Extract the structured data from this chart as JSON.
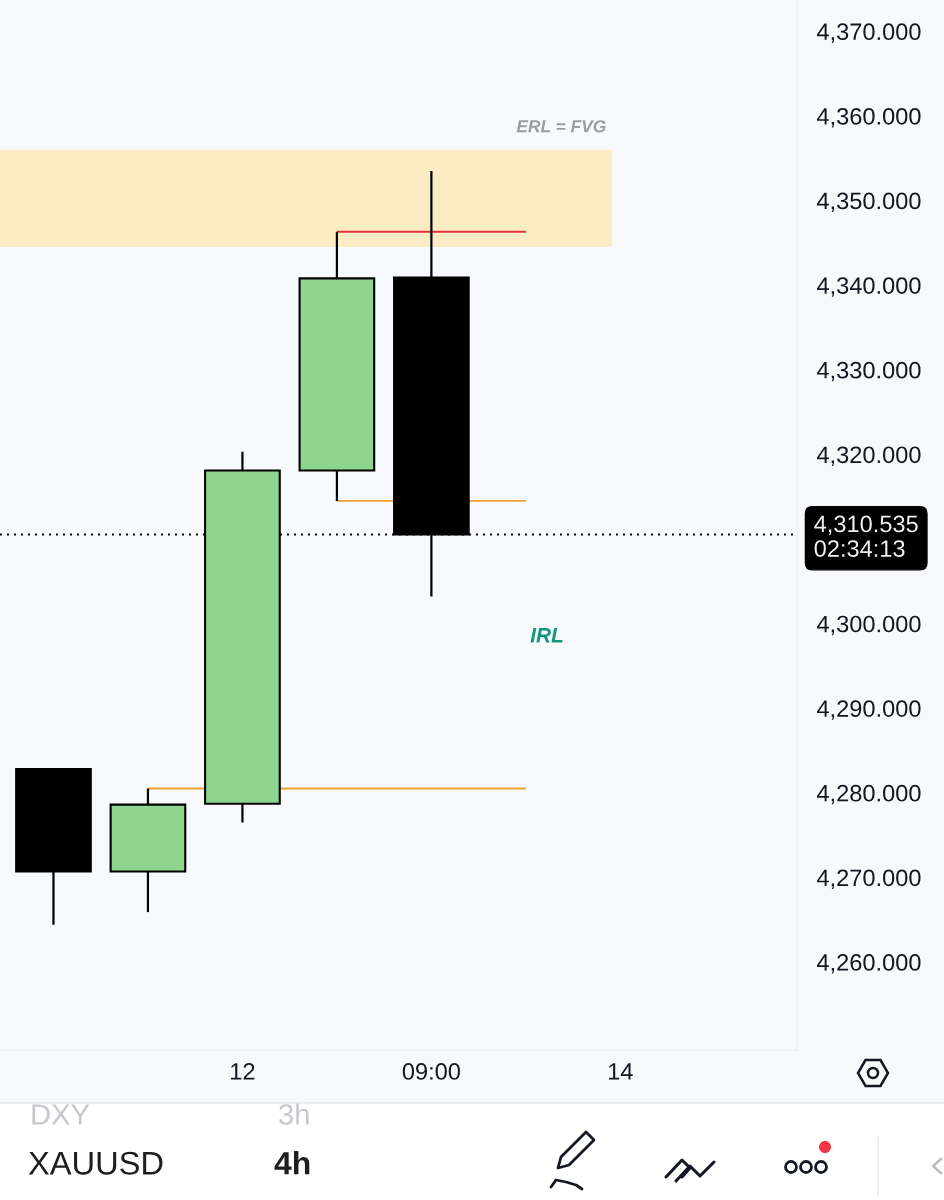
{
  "chart_data": {
    "type": "candlestick",
    "categories": [
      null,
      null,
      "12",
      null,
      "09:00",
      null,
      "14",
      null
    ],
    "ohlc": [
      [
        4282.8,
        4282.9,
        4264.4,
        4270.7
      ],
      [
        4270.7,
        4280.5,
        4265.9,
        4278.6
      ],
      [
        4278.7,
        4320.3,
        4276.5,
        4318.1
      ],
      [
        4318.1,
        4346.3,
        4314.5,
        4340.8
      ],
      [
        4340.9,
        4353.5,
        4303.2,
        4310.535
      ],
      null,
      null,
      null
    ],
    "colors": [
      "#000000",
      "#8ed68f",
      "#8ed68f",
      "#8ed68f",
      "#000000",
      null,
      null,
      null
    ],
    "ylim": [
      4249.6,
      4373.7
    ],
    "yticks": [
      {
        "value": 4260,
        "label": "4,260.000"
      },
      {
        "value": 4270,
        "label": "4,270.000"
      },
      {
        "value": 4280,
        "label": "4,280.000"
      },
      {
        "value": 4290,
        "label": "4,290.000"
      },
      {
        "value": 4300,
        "label": "4,300.000"
      },
      {
        "value": 4320,
        "label": "4,320.000"
      },
      {
        "value": 4330,
        "label": "4,330.000"
      },
      {
        "value": 4340,
        "label": "4,340.000"
      },
      {
        "value": 4350,
        "label": "4,350.000"
      },
      {
        "value": 4360,
        "label": "4,360.000"
      },
      {
        "value": 4370,
        "label": "4,370.000"
      }
    ],
    "bands": [
      {
        "axis": "y",
        "from": 4344.5,
        "to": 4356.0,
        "label": "ERL = FVG",
        "color": "#fcecc6"
      }
    ],
    "ref_lines": [
      {
        "axis": "y",
        "value": 4346.3,
        "color": "#e0323a",
        "line_style": "solid"
      },
      {
        "axis": "y",
        "value": 4314.5,
        "color": "#f0a030",
        "line_style": "solid"
      },
      {
        "axis": "y",
        "value": 4280.5,
        "color": "#f0a030",
        "line_style": "solid"
      },
      {
        "axis": "y",
        "value": 4310.535,
        "label": "4,310.535\n02:34:13",
        "color": "#000000",
        "line_style": "dotted"
      }
    ],
    "annotations": [
      "IRL",
      "DXY",
      "3h",
      "XAUUSD",
      "4h"
    ]
  }
}
